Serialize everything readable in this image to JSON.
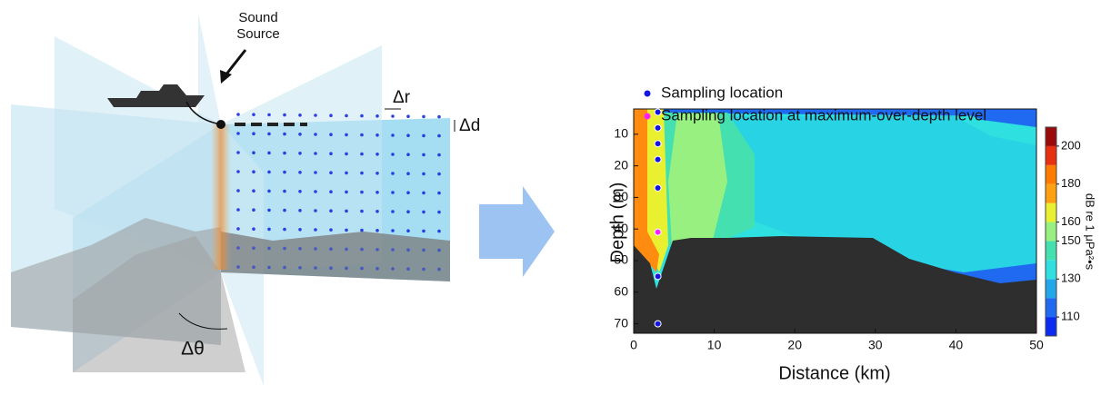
{
  "diagram": {
    "source_label": [
      "Sound",
      "Source"
    ],
    "range_step": "Δr",
    "depth_step": "Δd",
    "bearing_step": "Δθ"
  },
  "chart_data": {
    "type": "scatter",
    "xlabel": "Distance (km)",
    "ylabel": "Depth (m)",
    "xlim": [
      0,
      50
    ],
    "xticks": [
      0,
      10,
      20,
      30,
      40,
      50
    ],
    "ylim": [
      2,
      73
    ],
    "yticks": [
      10,
      20,
      30,
      40,
      50,
      60,
      70
    ],
    "y_inverted": true,
    "series": [
      {
        "name": "Sampling location",
        "color": "#1414e6",
        "x": [
          3,
          3,
          3,
          3,
          3,
          3,
          3
        ],
        "y": [
          3,
          8,
          13,
          18,
          27,
          55,
          70
        ]
      },
      {
        "name": "Sampling location at maximum-over-depth level",
        "color": "#ff22ff",
        "x": [
          3
        ],
        "y": [
          41
        ]
      }
    ],
    "colorbar": {
      "label": "dB re 1 μPa²•s",
      "levels": [
        100,
        110,
        120,
        130,
        140,
        150,
        160,
        170,
        180,
        190,
        200,
        210
      ],
      "colors": [
        "#0a2cf0",
        "#1f6af0",
        "#22a8ea",
        "#2fe0e0",
        "#44e0b0",
        "#98f080",
        "#e8f030",
        "#ffa010",
        "#ff7a00",
        "#e83010",
        "#9a0a0a"
      ],
      "ticks": [
        110,
        130,
        150,
        160,
        180,
        200
      ]
    }
  }
}
